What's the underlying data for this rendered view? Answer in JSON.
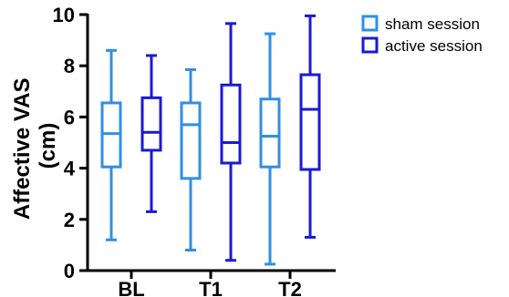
{
  "chart_data": {
    "type": "boxplot",
    "ylabel": [
      "Affective VAS",
      "(cm)"
    ],
    "ylim": [
      0,
      10
    ],
    "yticks": [
      0,
      2,
      4,
      6,
      8,
      10
    ],
    "categories": [
      "BL",
      "T1",
      "T2"
    ],
    "series": [
      {
        "name": "sham session",
        "color": "#2f8fe6",
        "boxes": [
          {
            "min": 1.2,
            "q1": 4.05,
            "median": 5.35,
            "q3": 6.55,
            "max": 8.6
          },
          {
            "min": 0.8,
            "q1": 3.6,
            "median": 5.7,
            "q3": 6.55,
            "max": 7.85
          },
          {
            "min": 0.25,
            "q1": 4.05,
            "median": 5.25,
            "q3": 6.7,
            "max": 9.25
          }
        ]
      },
      {
        "name": "active session",
        "color": "#1a1ad4",
        "boxes": [
          {
            "min": 2.3,
            "q1": 4.7,
            "median": 5.4,
            "q3": 6.75,
            "max": 8.4
          },
          {
            "min": 0.4,
            "q1": 4.2,
            "median": 5.0,
            "q3": 7.25,
            "max": 9.65
          },
          {
            "min": 1.3,
            "q1": 3.95,
            "median": 6.3,
            "q3": 7.65,
            "max": 9.95
          }
        ]
      }
    ],
    "legend_placement": "top-right"
  }
}
